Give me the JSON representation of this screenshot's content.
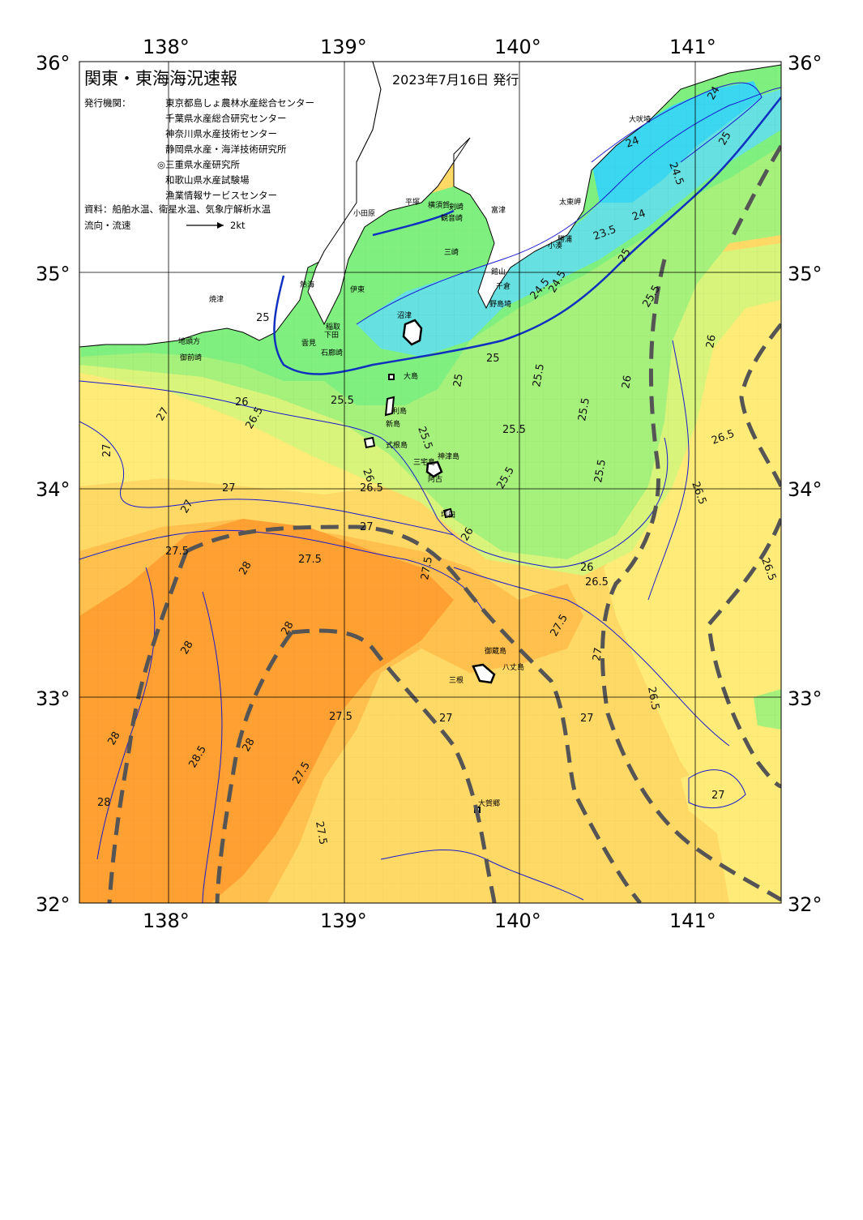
{
  "header": {
    "title": "関東・東海海況速報",
    "date": "2023年7月16日 発行",
    "issuers_label": "発行機関：",
    "issuers": [
      "東京都島しょ農林水産総合センター",
      "千葉県水産総合研究センター",
      "神奈川県水産技術センター",
      "静岡県水産・海洋技術研究所",
      "◎三重県水産研究所",
      "和歌山県水産試験場",
      "漁業情報サービスセンター"
    ],
    "sources": "資料：船舶水温、衛星水温、気象庁解析水温",
    "current_label": "流向・流速",
    "current_scale": "2kt"
  },
  "axes": {
    "lon_ticks": [
      "138°",
      "139°",
      "140°",
      "141°"
    ],
    "lat_ticks": [
      "36°",
      "35°",
      "34°",
      "33°",
      "32°"
    ]
  },
  "colors": {
    "t24": "#3bd7f0",
    "t245": "#66e0e0",
    "t25": "#7ff07f",
    "t255": "#a6f07c",
    "t26": "#d8f47a",
    "t265": "#ffec78",
    "t27": "#ffd966",
    "t275": "#ffc04d",
    "t28": "#ffa033",
    "land": "#ffffff",
    "contour": "#1a1ad0",
    "thick_contour": "#1030c0",
    "front": "#555555"
  },
  "places": [
    "大吠埼",
    "太東岬",
    "勝浦",
    "小湊",
    "館山",
    "千倉",
    "野島埼",
    "富津",
    "観音崎",
    "剣崎",
    "三崎",
    "横須賀",
    "平塚",
    "小田原",
    "熱海",
    "伊東",
    "稲取",
    "下田",
    "石廊崎",
    "雲見",
    "地頭方",
    "御前崎",
    "焼津",
    "沼津",
    "大島",
    "利島",
    "新島",
    "式根島",
    "神津島",
    "三宅島",
    "阿古",
    "坪田",
    "御蔵島",
    "八丈島",
    "三根",
    "大賀郷",
    "青ヶ島"
  ],
  "contour_labels": [
    "24",
    "24",
    "24",
    "24.5",
    "24.5",
    "24.5",
    "23.5",
    "25",
    "25",
    "25",
    "25",
    "25",
    "25.5",
    "25.5",
    "25.5",
    "25.5",
    "25.5",
    "25.5",
    "25.5",
    "25.5",
    "26",
    "26",
    "26",
    "26",
    "26",
    "26",
    "26.5",
    "26.5",
    "26.5",
    "26.5",
    "26.5",
    "26.5",
    "26.5",
    "27",
    "27",
    "27",
    "27",
    "27",
    "27",
    "27",
    "27",
    "27",
    "27.5",
    "27.5",
    "27.5",
    "27.5",
    "27.5",
    "27.5",
    "27.5",
    "28",
    "28",
    "28",
    "28",
    "28",
    "28",
    "28.5"
  ]
}
